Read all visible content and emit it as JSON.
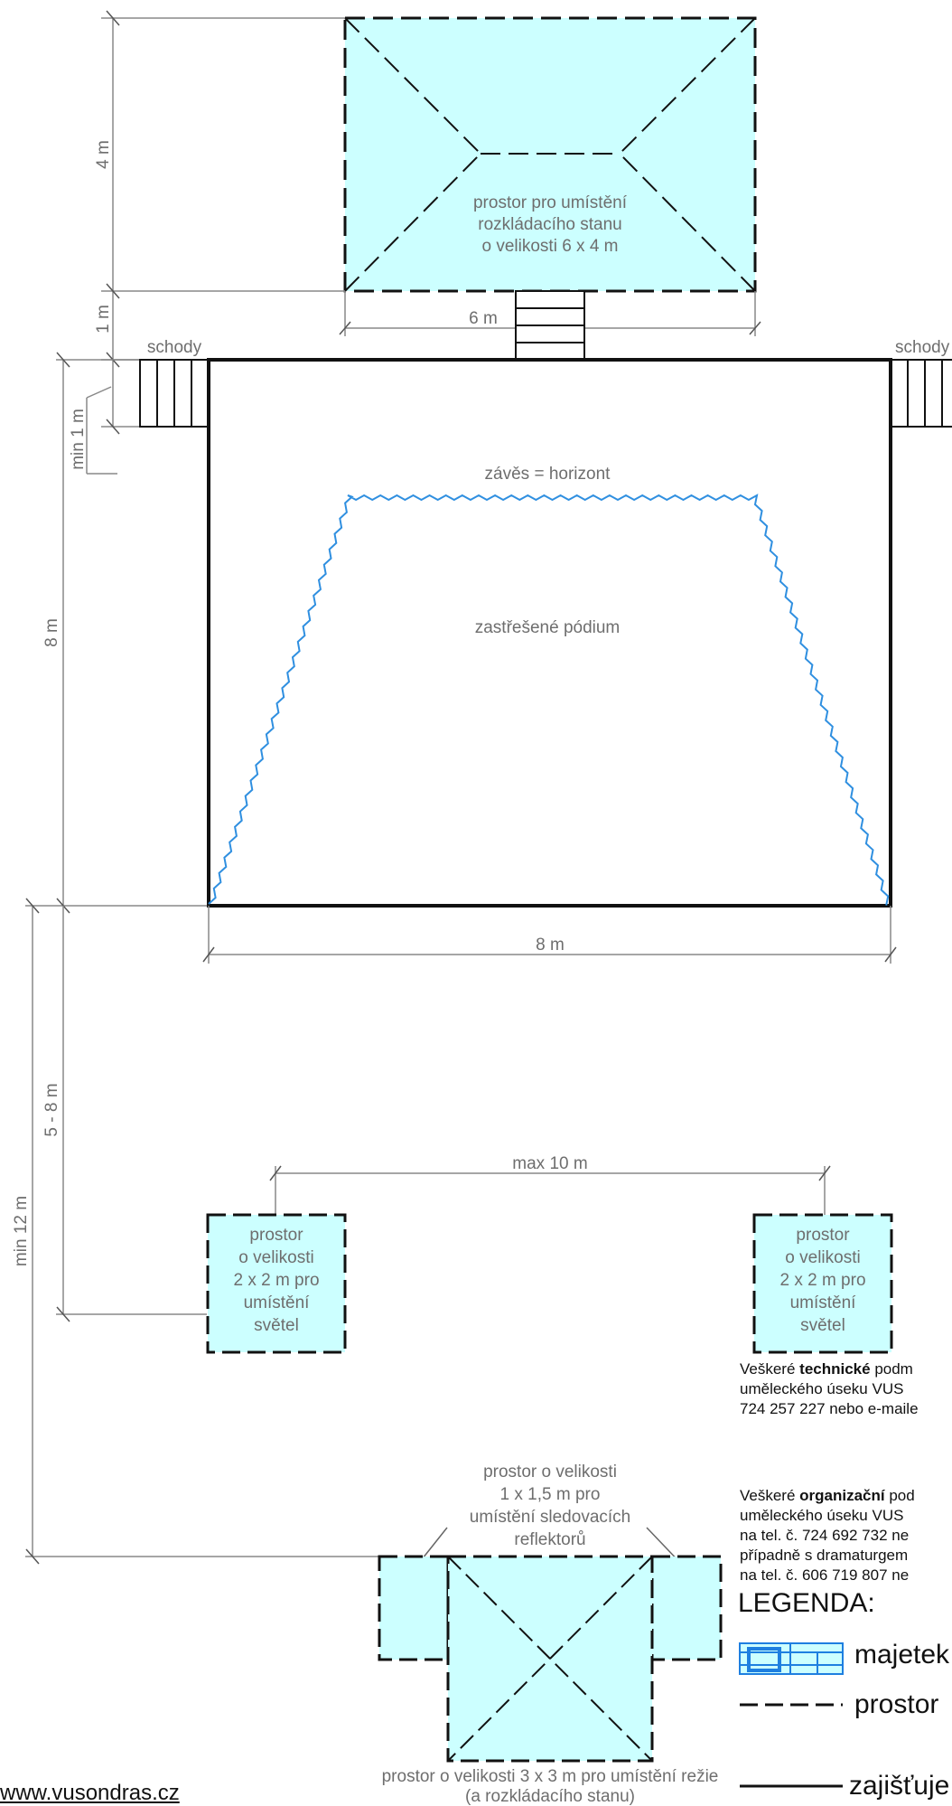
{
  "tent_area": {
    "text": [
      "prostor pro umístění",
      "rozkládacího stanu",
      "o velikosti 6 x 4 m"
    ]
  },
  "dimensions": {
    "tent_height": "4 m",
    "tent_gap": "1 m",
    "tent_width": "6 m",
    "stairs_min": "min 1 m",
    "stage_height": "8 m",
    "stage_width": "8 m",
    "lights_distance": "5 - 8 m",
    "control_distance": "min 12 m",
    "lights_spacing": "max 10 m"
  },
  "labels": {
    "stairs_left": "schody",
    "stairs_top": "schody",
    "stairs_right": "schody",
    "curtain": "závěs = horizont",
    "stage": "zastřešené pódium"
  },
  "light_box": {
    "text": [
      "prostor",
      "o velikosti",
      "2 x 2 m pro",
      "umístění",
      "světel"
    ]
  },
  "followspot_area": {
    "text": [
      "prostor o velikosti",
      "1 x 1,5 m pro",
      "umístění sledovacích",
      "reflektorů"
    ]
  },
  "control_area": {
    "text": [
      "prostor o velikosti 3 x 3 m pro umístění režie",
      "(a rozkládacího stanu)"
    ]
  },
  "notes": {
    "technical": {
      "prefix": "Veškeré ",
      "bold": "technické",
      "rest": " podm",
      "line2": "uměleckého úseku VUS ",
      "line3": "724 257 227 nebo e-maile"
    },
    "organizational": {
      "prefix": "Veškeré ",
      "bold": "organizační",
      "rest": " pod",
      "line2": "uměleckého úseku VUS ",
      "line3": "na tel. č. 724 692 732 ne",
      "line4": "případně s dramaturgem",
      "line5": "na tel. č. 606 719 807 ne"
    }
  },
  "legend": {
    "title": "LEGENDA:",
    "items": [
      "majetek",
      "prostor",
      "zajišťuje"
    ]
  },
  "website": "www.vusondras.cz",
  "colors": {
    "fill": "#ccffff",
    "curtain": "#2f8fe0",
    "legend_blue": "#1e7fe0"
  }
}
